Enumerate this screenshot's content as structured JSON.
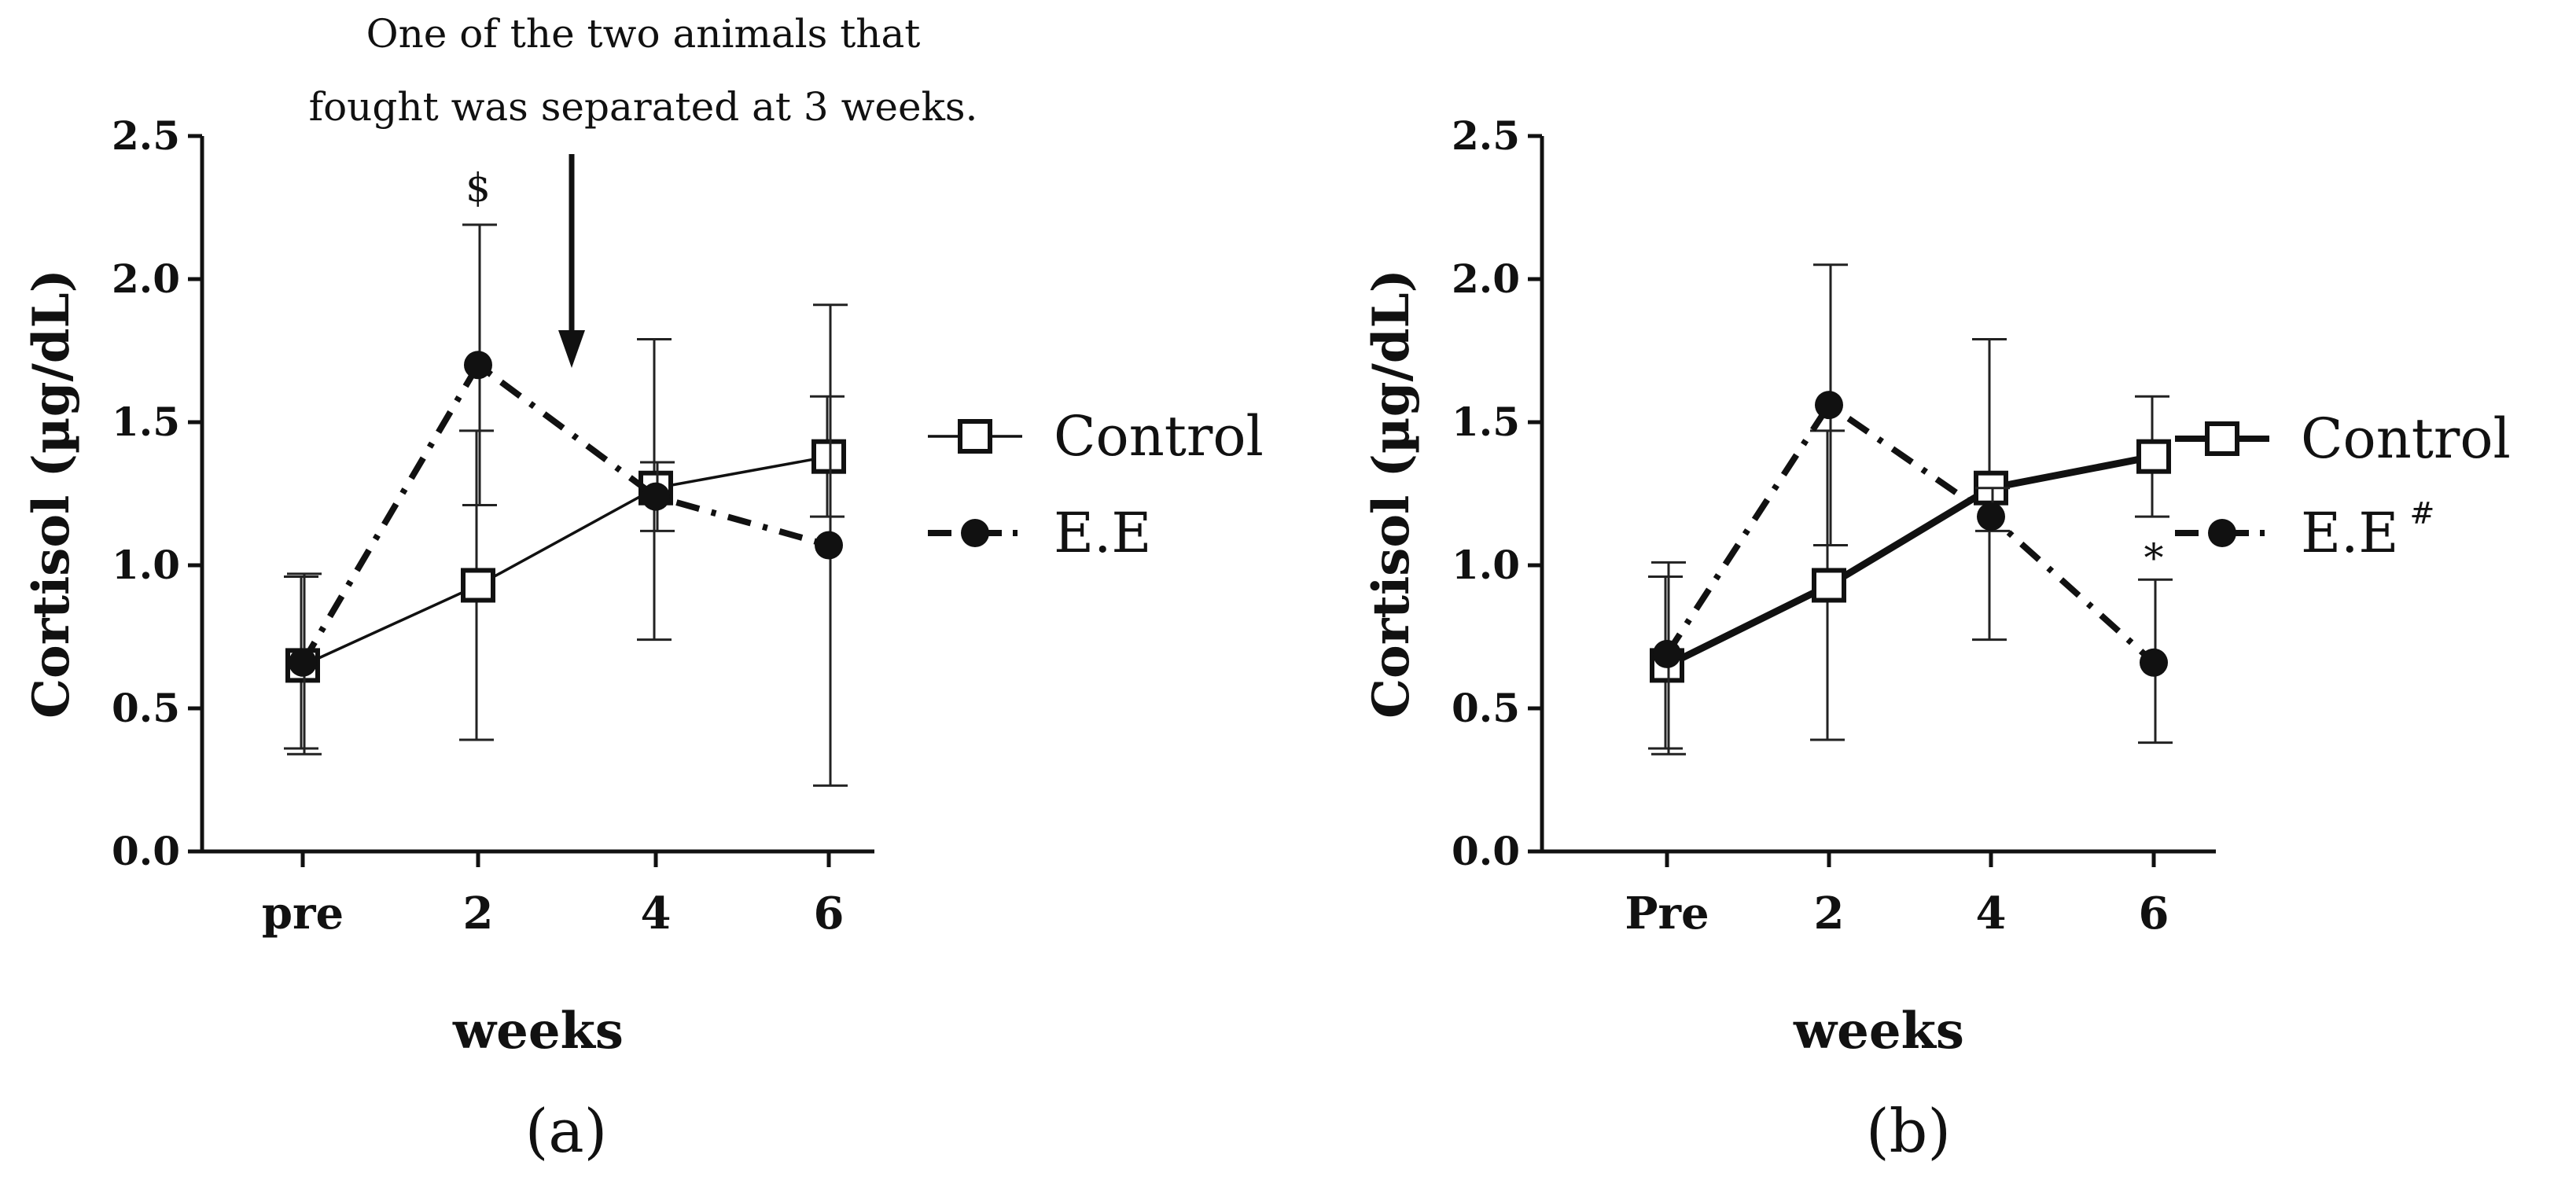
{
  "chart_data": [
    {
      "id": "a",
      "type": "line",
      "panel_label": "(a)",
      "categories": [
        "pre",
        "2",
        "4",
        "6"
      ],
      "xlabel": "weeks",
      "ylabel": "Cortisol (µg/dL)",
      "ylim": [
        0,
        2.5
      ],
      "yticks": [
        "0.0",
        "0.5",
        "1.0",
        "1.5",
        "2.0",
        "2.5"
      ],
      "series": [
        {
          "name": "Control",
          "marker": "open-square",
          "line": "solid-thin",
          "values": [
            0.65,
            0.93,
            1.27,
            1.38
          ],
          "err_low": [
            0.36,
            0.39,
            0.74,
            1.17
          ],
          "err_high": [
            0.96,
            1.47,
            1.79,
            1.59
          ]
        },
        {
          "name": "E.E",
          "marker": "filled-circle",
          "line": "dash-dot",
          "values": [
            0.66,
            1.7,
            1.24,
            1.07
          ],
          "err_low": [
            0.34,
            1.21,
            1.12,
            0.23
          ],
          "err_high": [
            0.97,
            2.19,
            1.36,
            1.91
          ]
        }
      ],
      "legend": [
        "Control",
        "E.E"
      ],
      "legend_superscript": "",
      "annotations": {
        "line1": "One of the two animals that",
        "line2": "fought was separated at 3 weeks."
      },
      "significance": [
        {
          "category": "2",
          "text": "$"
        }
      ]
    },
    {
      "id": "b",
      "type": "line",
      "panel_label": "(b)",
      "categories": [
        "Pre",
        "2",
        "4",
        "6"
      ],
      "xlabel": "weeks",
      "ylabel": "Cortisol (µg/dL)",
      "ylim": [
        0,
        2.5
      ],
      "yticks": [
        "0.0",
        "0.5",
        "1.0",
        "1.5",
        "2.0",
        "2.5"
      ],
      "series": [
        {
          "name": "Control",
          "marker": "open-square",
          "line": "solid-thick",
          "values": [
            0.65,
            0.93,
            1.27,
            1.38
          ],
          "err_low": [
            0.36,
            0.39,
            0.74,
            1.17
          ],
          "err_high": [
            0.96,
            1.47,
            1.79,
            1.59
          ]
        },
        {
          "name": "E.E",
          "marker": "filled-circle",
          "line": "dash-dot",
          "values": [
            0.69,
            1.56,
            1.17,
            0.66
          ],
          "err_low": [
            0.34,
            1.07,
            1.12,
            0.38
          ],
          "err_high": [
            1.01,
            2.05,
            1.27,
            0.95
          ]
        }
      ],
      "legend": [
        "Control",
        "E.E"
      ],
      "legend_superscript": "#",
      "significance": [
        {
          "category": "6",
          "text": "*"
        }
      ]
    }
  ]
}
